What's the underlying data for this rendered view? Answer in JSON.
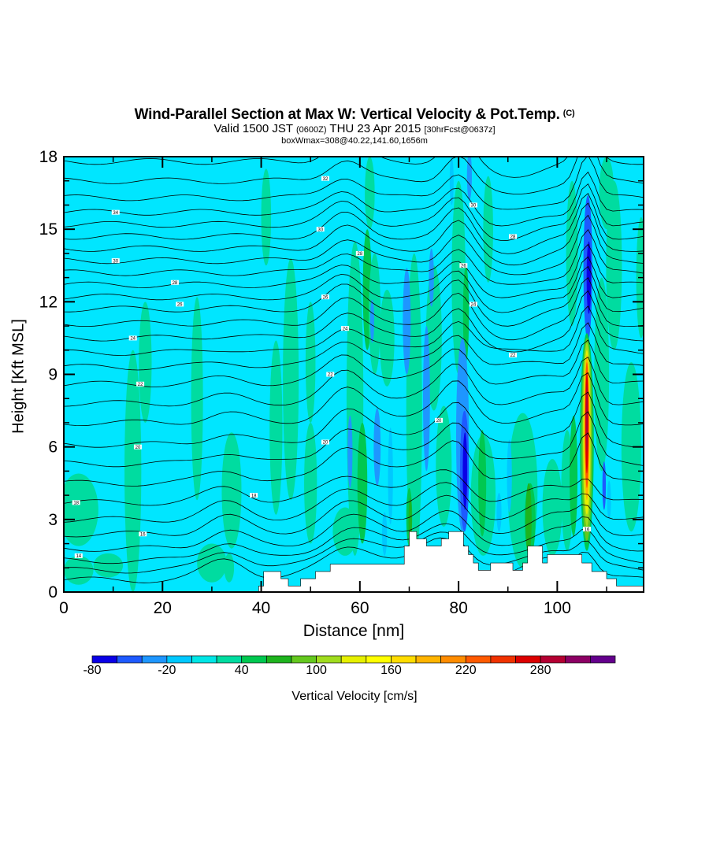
{
  "header": {
    "title": "Wind-Parallel Section at Max W: Vertical Velocity & Pot.Temp.",
    "title_mark": "(C)",
    "subtitle_a": "Valid 1500 JST",
    "subtitle_b": "(0600Z)",
    "subtitle_c": "THU 23 Apr 2015",
    "subtitle_d": "[30hrFcst@0637z]",
    "subtitle_line3": "boxWmax=308@40.22,141.60,1656m"
  },
  "chart_data": {
    "type": "heatmap",
    "xlabel": "Distance [nm]",
    "ylabel": "Height [Kft MSL]",
    "xlim": [
      0,
      117.5
    ],
    "ylim": [
      0,
      18
    ],
    "x_ticks": [
      0,
      20,
      40,
      60,
      80,
      100
    ],
    "y_ticks": [
      0,
      3,
      6,
      9,
      12,
      15,
      18
    ],
    "background_value_range": [
      -20,
      0
    ],
    "colorbar": {
      "label": "Vertical Velocity [cm/s]",
      "tick_labels": [
        "-80",
        "-20",
        "40",
        "100",
        "160",
        "220",
        "280"
      ],
      "colors": [
        "#0a00e6",
        "#1e5aff",
        "#1e96ff",
        "#00c8ff",
        "#00e6e6",
        "#00dca0",
        "#00c850",
        "#1eb41e",
        "#64c81e",
        "#a0dc1e",
        "#e6f000",
        "#ffff00",
        "#ffdc00",
        "#ffb400",
        "#ff8c00",
        "#ff5a00",
        "#f03200",
        "#dc0000",
        "#b40032",
        "#8c0064",
        "#64008c"
      ]
    },
    "terrain": [
      [
        0,
        0
      ],
      [
        39.5,
        0
      ],
      [
        39.5,
        0.25
      ],
      [
        40.5,
        0.25
      ],
      [
        40.5,
        0.85
      ],
      [
        44,
        0.85
      ],
      [
        44,
        0.55
      ],
      [
        45.5,
        0.55
      ],
      [
        45.5,
        0.25
      ],
      [
        48,
        0.25
      ],
      [
        48,
        0.55
      ],
      [
        51,
        0.55
      ],
      [
        51,
        0.85
      ],
      [
        54,
        0.85
      ],
      [
        54,
        1.15
      ],
      [
        69,
        1.15
      ],
      [
        69,
        1.9
      ],
      [
        70,
        1.9
      ],
      [
        70,
        2.5
      ],
      [
        71.5,
        2.5
      ],
      [
        71.5,
        2.2
      ],
      [
        73.5,
        2.2
      ],
      [
        73.5,
        1.9
      ],
      [
        76.5,
        1.9
      ],
      [
        76.5,
        2.2
      ],
      [
        78,
        2.2
      ],
      [
        78,
        2.5
      ],
      [
        81,
        2.5
      ],
      [
        81,
        1.9
      ],
      [
        82,
        1.9
      ],
      [
        82,
        1.55
      ],
      [
        83,
        1.55
      ],
      [
        83,
        1.2
      ],
      [
        84,
        1.2
      ],
      [
        84,
        0.9
      ],
      [
        86.5,
        0.9
      ],
      [
        86.5,
        1.2
      ],
      [
        91,
        1.2
      ],
      [
        91,
        0.9
      ],
      [
        93,
        0.9
      ],
      [
        93,
        1.2
      ],
      [
        94,
        1.2
      ],
      [
        94,
        1.9
      ],
      [
        97,
        1.9
      ],
      [
        97,
        1.2
      ],
      [
        98,
        1.2
      ],
      [
        98,
        1.55
      ],
      [
        105,
        1.55
      ],
      [
        105,
        1.2
      ],
      [
        107,
        1.2
      ],
      [
        107,
        0.85
      ],
      [
        110,
        0.85
      ],
      [
        110,
        0.55
      ],
      [
        112,
        0.55
      ],
      [
        112,
        0.25
      ],
      [
        117.5,
        0.25
      ],
      [
        117.5,
        0
      ]
    ],
    "isentrope_labels": [
      {
        "x": 3,
        "y": 1.5,
        "text": "14"
      },
      {
        "x": 2.5,
        "y": 3.7,
        "text": "18"
      },
      {
        "x": 16,
        "y": 2.4,
        "text": "16"
      },
      {
        "x": 15,
        "y": 6.0,
        "text": "20"
      },
      {
        "x": 15.5,
        "y": 8.6,
        "text": "22"
      },
      {
        "x": 14,
        "y": 10.5,
        "text": "24"
      },
      {
        "x": 23.5,
        "y": 11.9,
        "text": "26"
      },
      {
        "x": 22.5,
        "y": 12.8,
        "text": "28"
      },
      {
        "x": 10.5,
        "y": 13.7,
        "text": "30"
      },
      {
        "x": 10.5,
        "y": 15.7,
        "text": "34"
      },
      {
        "x": 38.5,
        "y": 4.0,
        "text": "18"
      },
      {
        "x": 53,
        "y": 6.2,
        "text": "20"
      },
      {
        "x": 54,
        "y": 9.0,
        "text": "22"
      },
      {
        "x": 57,
        "y": 10.9,
        "text": "24"
      },
      {
        "x": 53,
        "y": 12.2,
        "text": "26"
      },
      {
        "x": 60,
        "y": 14.0,
        "text": "28"
      },
      {
        "x": 52,
        "y": 15.0,
        "text": "30"
      },
      {
        "x": 53,
        "y": 17.1,
        "text": "32"
      },
      {
        "x": 76,
        "y": 7.1,
        "text": "20"
      },
      {
        "x": 83,
        "y": 11.9,
        "text": "24"
      },
      {
        "x": 81,
        "y": 13.5,
        "text": "26"
      },
      {
        "x": 83,
        "y": 16.0,
        "text": "30"
      },
      {
        "x": 91,
        "y": 14.7,
        "text": "28"
      },
      {
        "x": 91,
        "y": 9.8,
        "text": "22"
      },
      {
        "x": 106,
        "y": 2.6,
        "text": "16"
      }
    ]
  }
}
